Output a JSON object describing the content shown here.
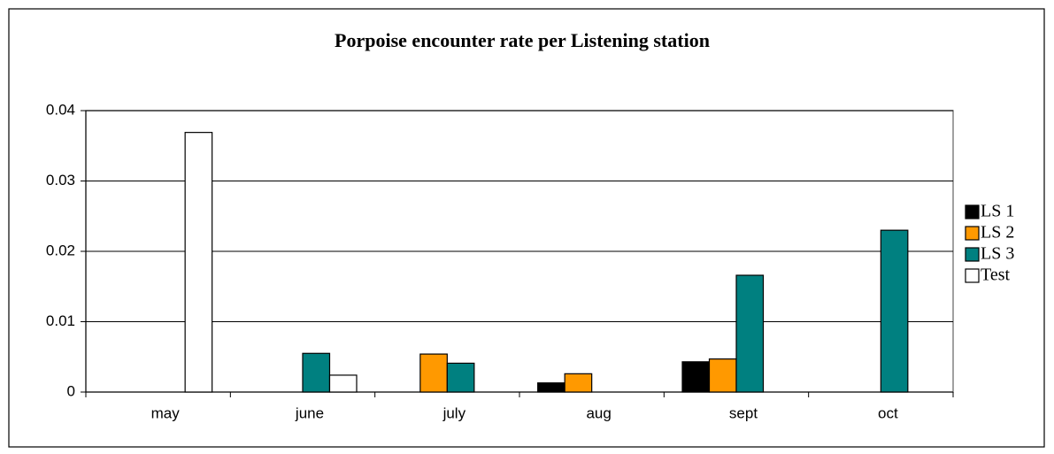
{
  "chart_data": {
    "type": "bar",
    "title": "Porpoise encounter rate per Listening station",
    "categories": [
      "may",
      "june",
      "july",
      "aug",
      "sept",
      "oct"
    ],
    "series": [
      {
        "name": "LS 1",
        "color": "#000000",
        "values": [
          0,
          0,
          0,
          0.0013,
          0.0043,
          0
        ]
      },
      {
        "name": "LS 2",
        "color": "#ff9900",
        "values": [
          0,
          0,
          0.0054,
          0.0026,
          0.0047,
          0
        ]
      },
      {
        "name": "LS 3",
        "color": "#008080",
        "values": [
          0,
          0.0055,
          0.0041,
          0,
          0.0166,
          0.023
        ]
      },
      {
        "name": "Test",
        "color": "#ffffff",
        "values": [
          0.0369,
          0.0024,
          0,
          0,
          0,
          0
        ]
      }
    ],
    "ylim": [
      0,
      0.04
    ],
    "yticks": [
      0,
      0.01,
      0.02,
      0.03,
      0.04
    ],
    "grid": true,
    "legend": "right"
  }
}
